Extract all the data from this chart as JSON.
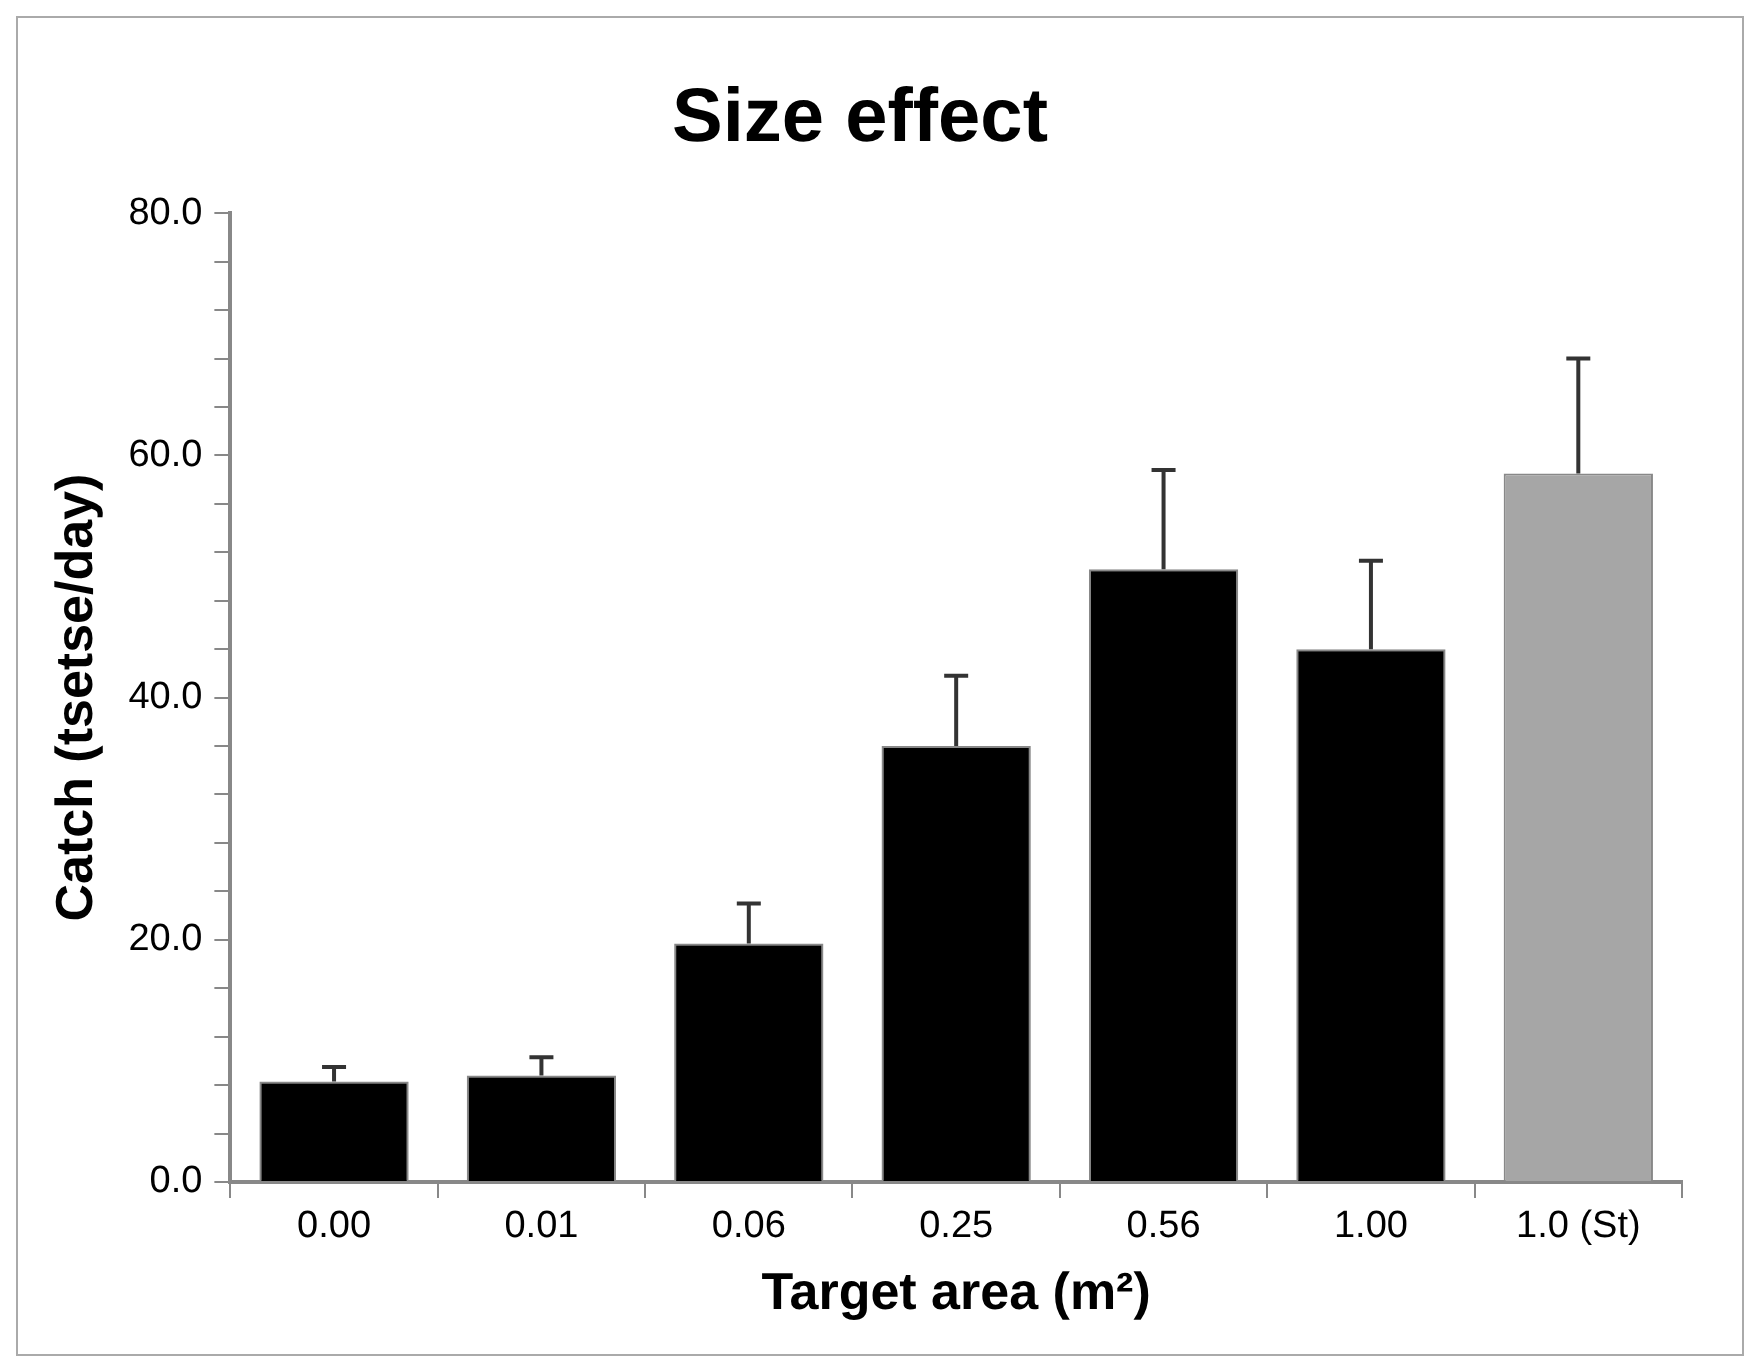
{
  "chart_data": {
    "type": "bar",
    "title": "Size effect",
    "xlabel": "Target area (m²)",
    "ylabel": "Catch (tsetse/day)",
    "categories": [
      "0.00",
      "0.01",
      "0.06",
      "0.25",
      "0.56",
      "1.00",
      "1.0 (St)"
    ],
    "values": [
      8.3,
      8.8,
      19.7,
      36.0,
      50.6,
      44.0,
      58.5
    ],
    "colors": [
      "#000000",
      "#000000",
      "#000000",
      "#000000",
      "#000000",
      "#000000",
      "#a6a6a6"
    ],
    "errors": [
      [
        8.3,
        9.5
      ],
      [
        8.8,
        10.3
      ],
      [
        19.7,
        23.0
      ],
      [
        36.0,
        41.8
      ],
      [
        50.6,
        58.8
      ],
      [
        44.0,
        51.3
      ],
      [
        58.5,
        68.0
      ]
    ],
    "ylim": [
      0,
      80
    ],
    "yticks": [
      {
        "value": 0,
        "label": "0.0"
      },
      {
        "value": 4,
        "label": null
      },
      {
        "value": 8,
        "label": null
      },
      {
        "value": 12,
        "label": null
      },
      {
        "value": 16,
        "label": null
      },
      {
        "value": 20,
        "label": "20.0"
      },
      {
        "value": 24,
        "label": null
      },
      {
        "value": 28,
        "label": null
      },
      {
        "value": 32,
        "label": null
      },
      {
        "value": 36,
        "label": null
      },
      {
        "value": 40,
        "label": "40.0"
      },
      {
        "value": 44,
        "label": null
      },
      {
        "value": 48,
        "label": null
      },
      {
        "value": 52,
        "label": null
      },
      {
        "value": 56,
        "label": null
      },
      {
        "value": 60,
        "label": "60.0"
      },
      {
        "value": 64,
        "label": null
      },
      {
        "value": 68,
        "label": null
      },
      {
        "value": 72,
        "label": null
      },
      {
        "value": 76,
        "label": null
      },
      {
        "value": 80,
        "label": "80.0"
      }
    ],
    "grid": false,
    "legend": false
  }
}
